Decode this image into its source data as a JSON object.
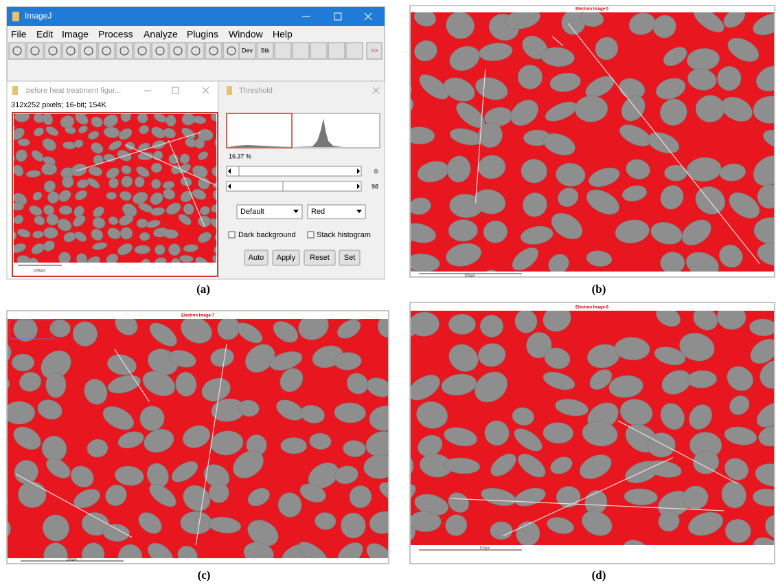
{
  "imagej": {
    "title": "ImageJ",
    "menu": [
      "File",
      "Edit",
      "Image",
      "Process",
      "Analyze",
      "Plugins",
      "Window",
      "Help"
    ],
    "toolbar": [
      "Dev",
      "Stk",
      ">>"
    ]
  },
  "image_window": {
    "title": "before heat treatment figur...",
    "info": "312x252 pixels; 16-bit; 154K",
    "scale_bar": "100um"
  },
  "threshold": {
    "title": "Threshold",
    "percent": "16.37 %",
    "min": "0",
    "max": "98",
    "method": "Default",
    "mode": "Red",
    "options": [
      "Dark background",
      "Stack histogram"
    ],
    "buttons": [
      "Auto",
      "Apply",
      "Reset",
      "Set"
    ]
  },
  "panels": [
    {
      "label": "(a)"
    },
    {
      "label": "(b)",
      "title": "Electron Image 5",
      "scale_bar": "100µm"
    },
    {
      "label": "(c)",
      "title": "Electron Image 7",
      "scale_bar": "100µm"
    },
    {
      "label": "(d)",
      "title": "Electron Image 8",
      "scale_bar": "100µm"
    }
  ]
}
